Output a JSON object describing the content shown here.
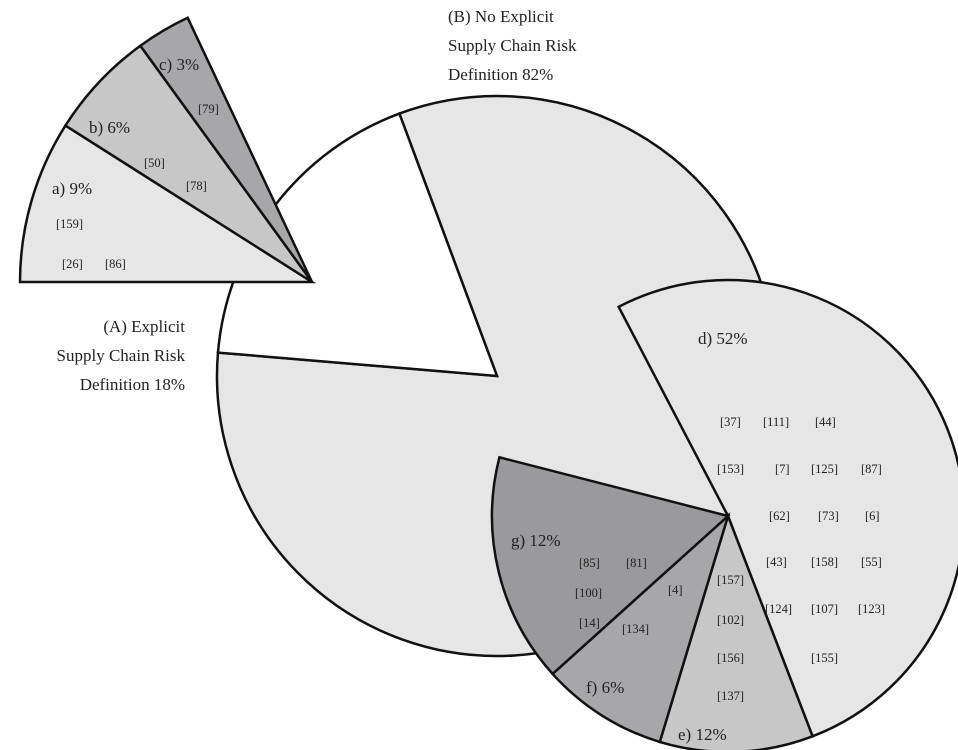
{
  "chart_data": [
    {
      "type": "pie",
      "slices": [
        {
          "label": "(A) Explicit Supply Chain Risk Definition 18%",
          "label_lines": [
            "(A) Explicit",
            "Supply Chain Risk",
            "Definition 18%"
          ],
          "value": 18
        },
        {
          "label": "(B) No Explicit Supply Chain Risk Definition 82%",
          "label_lines": [
            "(B) No Explicit",
            "Supply Chain Risk",
            "Definition 82%"
          ],
          "value": 82
        }
      ]
    },
    {
      "type": "pie",
      "breakout_of": "(A) Explicit Supply Chain Risk Definition 18%",
      "slices": [
        {
          "label": "a) 9%",
          "value": 9,
          "refs": [
            "[159]",
            "[26]",
            "[86]"
          ]
        },
        {
          "label": "b) 6%",
          "value": 6,
          "refs": [
            "[50]",
            "[78]"
          ]
        },
        {
          "label": "c) 3%",
          "value": 3,
          "refs": [
            "[79]"
          ]
        }
      ]
    },
    {
      "type": "pie",
      "breakout_of": "(B) No Explicit Supply Chain Risk Definition 82%",
      "slices": [
        {
          "label": "d) 52%",
          "value": 52,
          "refs": [
            "[37]",
            "[111]",
            "[44]",
            "[153]",
            "[7]",
            "[125]",
            "[87]",
            "[62]",
            "[73]",
            "[6]",
            "[43]",
            "[158]",
            "[55]",
            "[124]",
            "[107]",
            "[123]",
            "[155]"
          ]
        },
        {
          "label": "e) 12%",
          "value": 12,
          "refs": [
            "[157]",
            "[102]",
            "[156]",
            "[137]"
          ]
        },
        {
          "label": "f) 6%",
          "value": 6,
          "refs": [
            "[4]",
            "[134]"
          ]
        },
        {
          "label": "g) 12%",
          "value": 12,
          "refs": [
            "[85]",
            "[81]",
            "[100]",
            "[14]"
          ]
        }
      ]
    }
  ],
  "colors": {
    "light": "#e6e6e7",
    "mid": "#c7c7c8",
    "dark": "#a7a7a9",
    "darker": "#9a9a9c",
    "stroke": "#111111"
  }
}
